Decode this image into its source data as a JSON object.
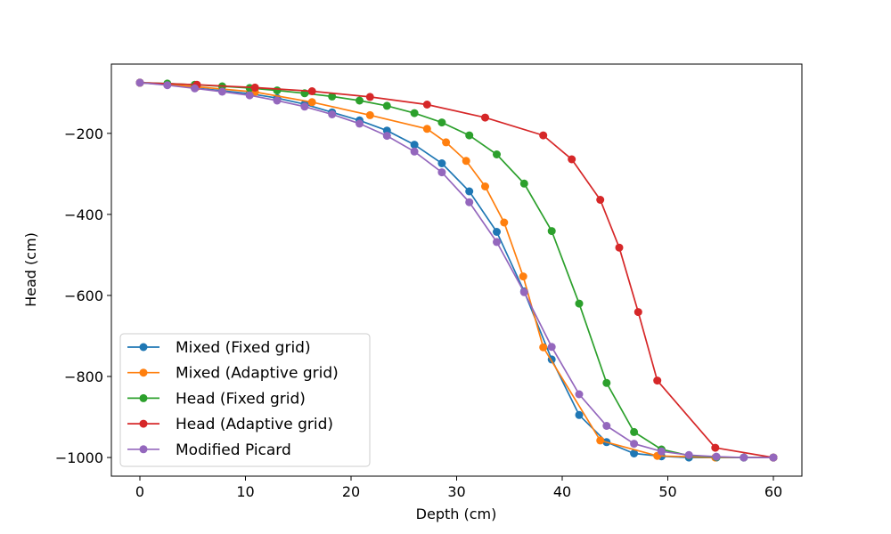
{
  "chart_data": {
    "type": "line",
    "title": "",
    "xlabel": "Depth (cm)",
    "ylabel": "Head (cm)",
    "xlim": [
      -2.7,
      62.7
    ],
    "ylim": [
      -1046,
      -29
    ],
    "xticks": [
      0,
      10,
      20,
      30,
      40,
      50,
      60
    ],
    "xtick_labels": [
      "0",
      "10",
      "20",
      "30",
      "40",
      "50",
      "60"
    ],
    "yticks": [
      -1000,
      -800,
      -600,
      -400,
      -200
    ],
    "ytick_labels": [
      "−1000",
      "−800",
      "−600",
      "−400",
      "−200"
    ],
    "grid": false,
    "legend_position": "lower-left",
    "series": [
      {
        "name": "Mixed (Fixed grid)",
        "color": "#1f77b4",
        "x": [
          0,
          2.6,
          5.2,
          7.8,
          10.4,
          13.0,
          15.6,
          18.2,
          20.8,
          23.4,
          26.0,
          28.6,
          31.2,
          33.8,
          36.4,
          39.0,
          41.6,
          44.2,
          46.8,
          49.4,
          52.0,
          54.6,
          57.2,
          60.0
        ],
        "y": [
          -75,
          -80,
          -88,
          -95,
          -102,
          -113,
          -128,
          -148,
          -168,
          -193,
          -228,
          -274,
          -343,
          -443,
          -590,
          -758,
          -895,
          -962,
          -990,
          -997,
          -1000,
          -1000,
          -1000,
          -1000
        ]
      },
      {
        "name": "Mixed (Adaptive grid)",
        "color": "#ff7f0e",
        "x": [
          0,
          5.4,
          10.9,
          16.3,
          21.8,
          27.2,
          29.0,
          30.9,
          32.7,
          34.5,
          36.3,
          38.2,
          43.6,
          49.0,
          54.5,
          60.0
        ],
        "y": [
          -75,
          -85,
          -98,
          -123,
          -155,
          -189,
          -222,
          -268,
          -331,
          -420,
          -553,
          -728,
          -958,
          -996,
          -1000,
          -1000
        ]
      },
      {
        "name": "Head (Fixed grid)",
        "color": "#2ca02c",
        "x": [
          0,
          2.6,
          5.2,
          7.8,
          10.4,
          13.0,
          15.6,
          18.2,
          20.8,
          23.4,
          26.0,
          28.6,
          31.2,
          33.8,
          36.4,
          39.0,
          41.6,
          44.2,
          46.8,
          49.4,
          52.0,
          54.6,
          57.2,
          60.0
        ],
        "y": [
          -75,
          -77,
          -80,
          -84,
          -88,
          -94,
          -101,
          -109,
          -119,
          -132,
          -150,
          -173,
          -205,
          -252,
          -324,
          -441,
          -620,
          -816,
          -937,
          -980,
          -995,
          -999,
          -1000,
          -1000
        ]
      },
      {
        "name": "Head (Adaptive grid)",
        "color": "#d62728",
        "x": [
          0,
          5.4,
          10.9,
          16.3,
          21.8,
          27.2,
          32.7,
          38.2,
          40.9,
          43.6,
          45.4,
          47.2,
          49.0,
          54.5,
          60.0
        ],
        "y": [
          -75,
          -80,
          -87,
          -96,
          -110,
          -129,
          -161,
          -205,
          -264,
          -364,
          -482,
          -641,
          -810,
          -976,
          -1000
        ]
      },
      {
        "name": "Modified Picard",
        "color": "#9467bd",
        "x": [
          0,
          2.6,
          5.2,
          7.8,
          10.4,
          13.0,
          15.6,
          18.2,
          20.8,
          23.4,
          26.0,
          28.6,
          31.2,
          33.8,
          36.4,
          39.0,
          41.6,
          44.2,
          46.8,
          49.4,
          52.0,
          54.6,
          57.2,
          60.0
        ],
        "y": [
          -75,
          -81,
          -89,
          -97,
          -106,
          -119,
          -134,
          -153,
          -176,
          -206,
          -245,
          -296,
          -370,
          -468,
          -592,
          -727,
          -844,
          -922,
          -966,
          -985,
          -994,
          -998,
          -1000,
          -1000
        ]
      }
    ]
  }
}
